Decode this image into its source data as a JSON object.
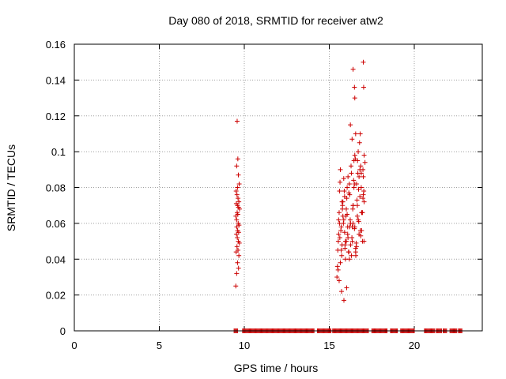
{
  "chart_data": {
    "type": "scatter",
    "title": "Day 080 of 2018, SRMTID for receiver atw2",
    "xlabel": "GPS time / hours",
    "ylabel": "SRMTID / TECUs",
    "xlim": [
      0,
      24
    ],
    "ylim": [
      0,
      0.16
    ],
    "xticks": [
      0,
      5,
      10,
      15,
      20
    ],
    "xtick_labels": [
      "0",
      "5",
      "10",
      "15",
      "20"
    ],
    "yticks": [
      0,
      0.02,
      0.04,
      0.06,
      0.08,
      0.1,
      0.12,
      0.14,
      0.16
    ],
    "ytick_labels": [
      "0",
      "0.02",
      "0.04",
      "0.06",
      "0.08",
      "0.1",
      "0.12",
      "0.14",
      "0.16"
    ],
    "grid": true,
    "marker": "plus",
    "series": [
      {
        "name": "SRMTID",
        "color": "#cc0000",
        "x": [
          9.5,
          9.58,
          9.62,
          9.55,
          9.65,
          9.7,
          9.6,
          9.52,
          9.57,
          9.63,
          9.68,
          9.53,
          9.6,
          9.66,
          9.72,
          9.58,
          9.62,
          9.5,
          9.55,
          9.64,
          9.69,
          9.56,
          9.61,
          9.67,
          9.54,
          9.59,
          9.65,
          9.71,
          9.57,
          9.63,
          9.52,
          9.68,
          9.6,
          9.66,
          9.55,
          15.45,
          15.5,
          15.55,
          15.6,
          15.65,
          15.7,
          15.75,
          15.8,
          15.85,
          15.9,
          15.95,
          16.0,
          16.05,
          16.1,
          16.15,
          16.2,
          16.25,
          16.3,
          16.35,
          16.4,
          16.45,
          16.5,
          16.55,
          16.6,
          16.65,
          16.7,
          16.75,
          16.8,
          16.85,
          16.9,
          16.95,
          17.0,
          17.05,
          17.1,
          15.48,
          15.53,
          15.58,
          15.63,
          15.68,
          15.73,
          15.78,
          15.83,
          15.88,
          15.93,
          15.98,
          16.03,
          16.08,
          16.13,
          16.18,
          16.23,
          16.28,
          16.33,
          16.38,
          16.43,
          16.48,
          16.53,
          16.58,
          16.63,
          16.68,
          16.73,
          16.78,
          16.83,
          16.88,
          16.93,
          16.98,
          17.03,
          15.52,
          15.6,
          15.7,
          15.8,
          15.9,
          16.0,
          16.1,
          16.2,
          16.3,
          16.4,
          16.5,
          16.6,
          16.7,
          16.8,
          16.9,
          17.0,
          15.55,
          15.65,
          15.75,
          15.85,
          15.95,
          16.05,
          16.15,
          16.25,
          16.35,
          16.45,
          16.55,
          16.65,
          16.75,
          16.85,
          16.95,
          17.05,
          15.58,
          15.72,
          15.86,
          16.02,
          16.18,
          16.34,
          16.5,
          16.66,
          16.82,
          16.98,
          15.62,
          15.77,
          15.92,
          16.08,
          16.24,
          16.4,
          16.56,
          16.72,
          16.88,
          17.04,
          16.4,
          16.5,
          16.48,
          17.0,
          16.55,
          17.02
        ],
        "y": [
          0.025,
          0.117,
          0.096,
          0.092,
          0.087,
          0.082,
          0.08,
          0.078,
          0.076,
          0.074,
          0.072,
          0.071,
          0.07,
          0.069,
          0.068,
          0.066,
          0.065,
          0.064,
          0.062,
          0.06,
          0.059,
          0.058,
          0.056,
          0.055,
          0.054,
          0.052,
          0.05,
          0.049,
          0.047,
          0.045,
          0.044,
          0.042,
          0.038,
          0.035,
          0.032,
          0.03,
          0.045,
          0.062,
          0.078,
          0.09,
          0.058,
          0.048,
          0.072,
          0.085,
          0.055,
          0.04,
          0.068,
          0.08,
          0.052,
          0.044,
          0.076,
          0.06,
          0.088,
          0.05,
          0.07,
          0.095,
          0.058,
          0.046,
          0.082,
          0.064,
          0.1,
          0.054,
          0.075,
          0.092,
          0.066,
          0.05,
          0.086,
          0.072,
          0.094,
          0.036,
          0.05,
          0.066,
          0.083,
          0.056,
          0.042,
          0.07,
          0.06,
          0.078,
          0.048,
          0.064,
          0.074,
          0.054,
          0.044,
          0.082,
          0.062,
          0.092,
          0.052,
          0.068,
          0.084,
          0.057,
          0.096,
          0.049,
          0.073,
          0.088,
          0.061,
          0.105,
          0.056,
          0.08,
          0.066,
          0.09,
          0.078,
          0.034,
          0.06,
          0.045,
          0.064,
          0.075,
          0.05,
          0.086,
          0.058,
          0.042,
          0.07,
          0.082,
          0.047,
          0.062,
          0.09,
          0.056,
          0.076,
          0.054,
          0.038,
          0.072,
          0.062,
          0.05,
          0.065,
          0.077,
          0.048,
          0.058,
          0.08,
          0.044,
          0.07,
          0.086,
          0.053,
          0.066,
          0.098,
          0.028,
          0.022,
          0.017,
          0.024,
          0.04,
          0.107,
          0.098,
          0.095,
          0.11,
          0.074,
          0.052,
          0.068,
          0.046,
          0.058,
          0.115,
          0.06,
          0.042,
          0.079,
          0.088,
          0.05,
          0.146,
          0.13,
          0.136,
          0.15,
          0.11,
          0.136
        ]
      },
      {
        "name": "zero-baseline",
        "color": "#cc0000",
        "x_ranges": [
          [
            9.4,
            9.6
          ],
          [
            9.9,
            14.1
          ],
          [
            14.3,
            15.1
          ],
          [
            15.2,
            17.3
          ],
          [
            17.5,
            18.4
          ],
          [
            18.6,
            19.0
          ],
          [
            19.2,
            20.0
          ],
          [
            20.6,
            21.2
          ],
          [
            21.3,
            21.6
          ],
          [
            21.7,
            21.9
          ],
          [
            22.1,
            22.5
          ],
          [
            22.6,
            22.8
          ]
        ],
        "y": 0
      }
    ]
  }
}
